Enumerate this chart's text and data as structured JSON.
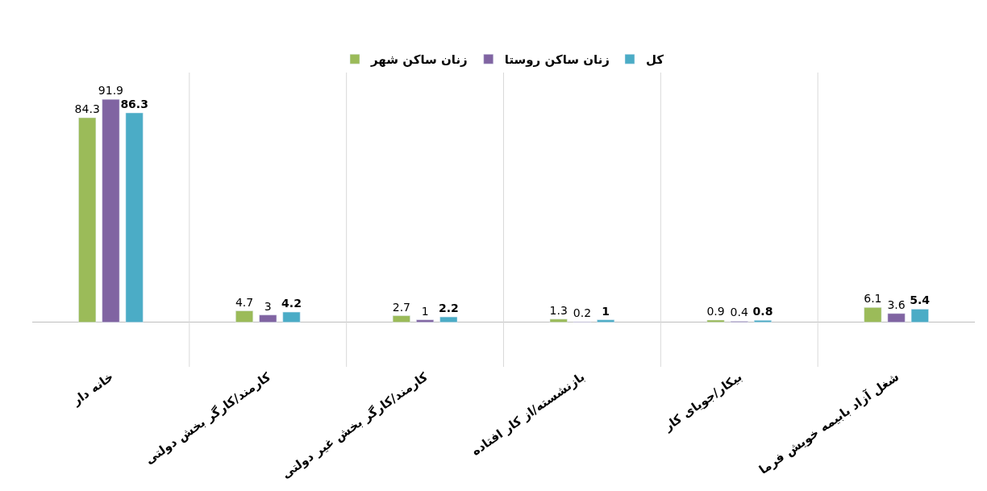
{
  "chart_data": {
    "type": "bar",
    "categories": [
      "خانه دار",
      "کارمند/کارگر بخش دولتی",
      "کارمند/کارگر بخش غیر دولتی",
      "بازنشسته/از کار افتاده",
      "بیکار/جویای کار",
      "شغل آزاد بابیمه خویش فرما"
    ],
    "series": [
      {
        "name": "زنان ساکن شهر",
        "color": "#9bbb59",
        "values": [
          84.3,
          4.7,
          2.7,
          1.3,
          0.9,
          6.1
        ]
      },
      {
        "name": "زنان ساکن روستا",
        "color": "#8064a2",
        "values": [
          91.9,
          3,
          1,
          0.2,
          0.4,
          3.6
        ]
      },
      {
        "name": "کل",
        "color": "#4bacc6",
        "values": [
          86.3,
          4.2,
          2.2,
          1,
          0.8,
          5.4
        ]
      }
    ],
    "data_labels": true,
    "legend": "top",
    "grid": "x"
  }
}
